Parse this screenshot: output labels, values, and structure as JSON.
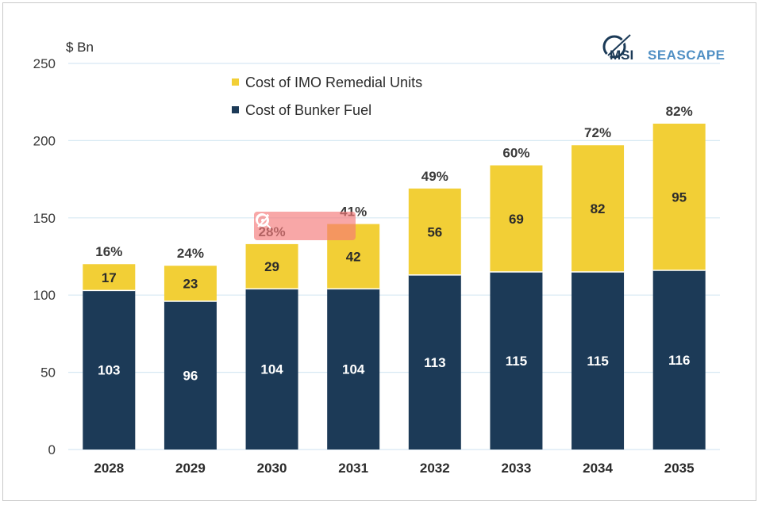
{
  "chart_data": {
    "type": "bar",
    "stacked": true,
    "unit_label": "$ Bn",
    "categories": [
      "2028",
      "2029",
      "2030",
      "2031",
      "2032",
      "2033",
      "2034",
      "2035"
    ],
    "series": [
      {
        "name": "Cost of Bunker Fuel",
        "values": [
          103,
          96,
          104,
          104,
          113,
          115,
          115,
          116
        ],
        "color": "#1c3a57",
        "label_color": "#ffffff"
      },
      {
        "name": "Cost of IMO Remedial Units",
        "values": [
          17,
          23,
          29,
          42,
          56,
          69,
          82,
          95
        ],
        "color": "#f2cf36",
        "label_color": "#2b2b2b"
      }
    ],
    "percent_labels": [
      "16%",
      "24%",
      "28%",
      "41%",
      "49%",
      "60%",
      "72%",
      "82%"
    ],
    "ylim": [
      0,
      250
    ],
    "yticks": [
      0,
      50,
      100,
      150,
      200,
      250
    ],
    "legend": [
      {
        "name": "Cost of IMO Remedial Units",
        "color": "#f2cf36"
      },
      {
        "name": "Cost of Bunker Fuel",
        "color": "#1c3a57"
      }
    ],
    "grid": true
  },
  "logo": {
    "part1": "MSI",
    "part2": "SEASCAPE"
  },
  "colors": {
    "grid": "#d6e8f3",
    "fuel": "#1c3a57",
    "imo": "#f2cf36"
  }
}
